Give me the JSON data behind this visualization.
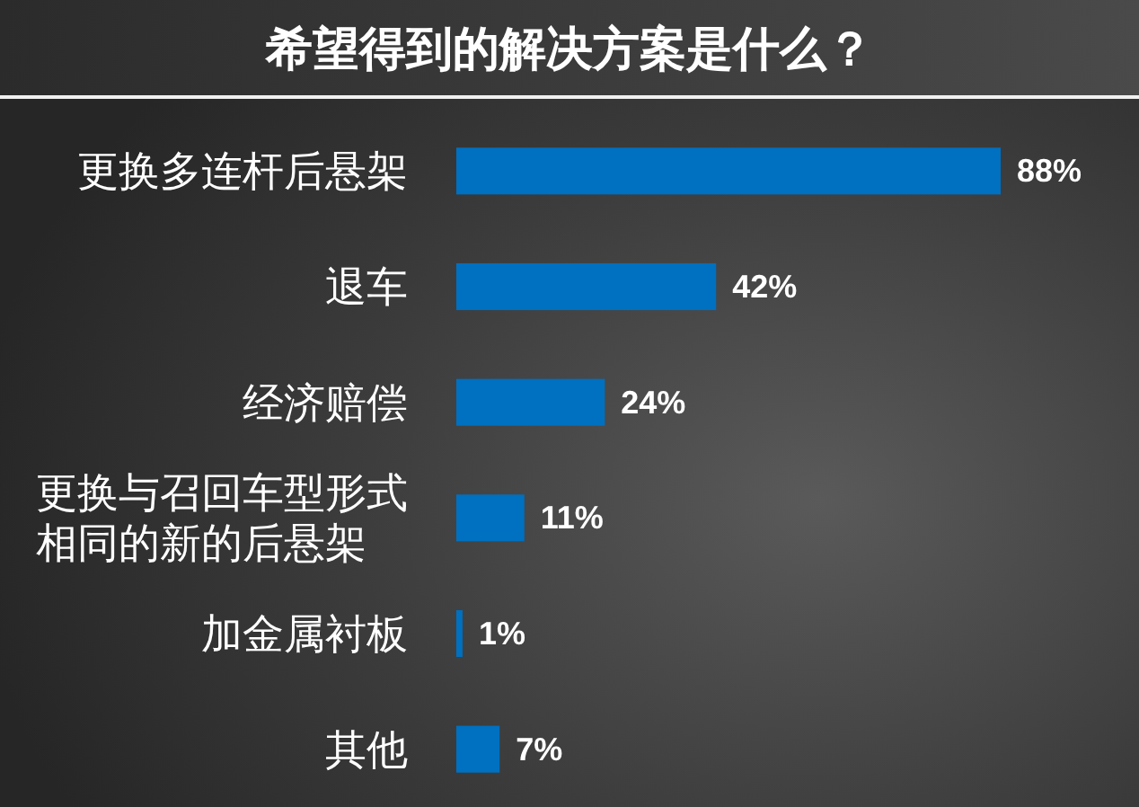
{
  "chart_data": {
    "type": "bar",
    "orientation": "horizontal",
    "title": "希望得到的解决方案是什么？",
    "categories": [
      "更换多连杆后悬架",
      "退车",
      "经济赔偿",
      "更换与召回车型形式相同的新的后悬架",
      "加金属衬板",
      "其他"
    ],
    "values": [
      88,
      42,
      24,
      11,
      1,
      7
    ],
    "color": "#0070c0",
    "value_labels": [
      "88%",
      "42%",
      "24%",
      "11%",
      "1%",
      "7%"
    ]
  }
}
